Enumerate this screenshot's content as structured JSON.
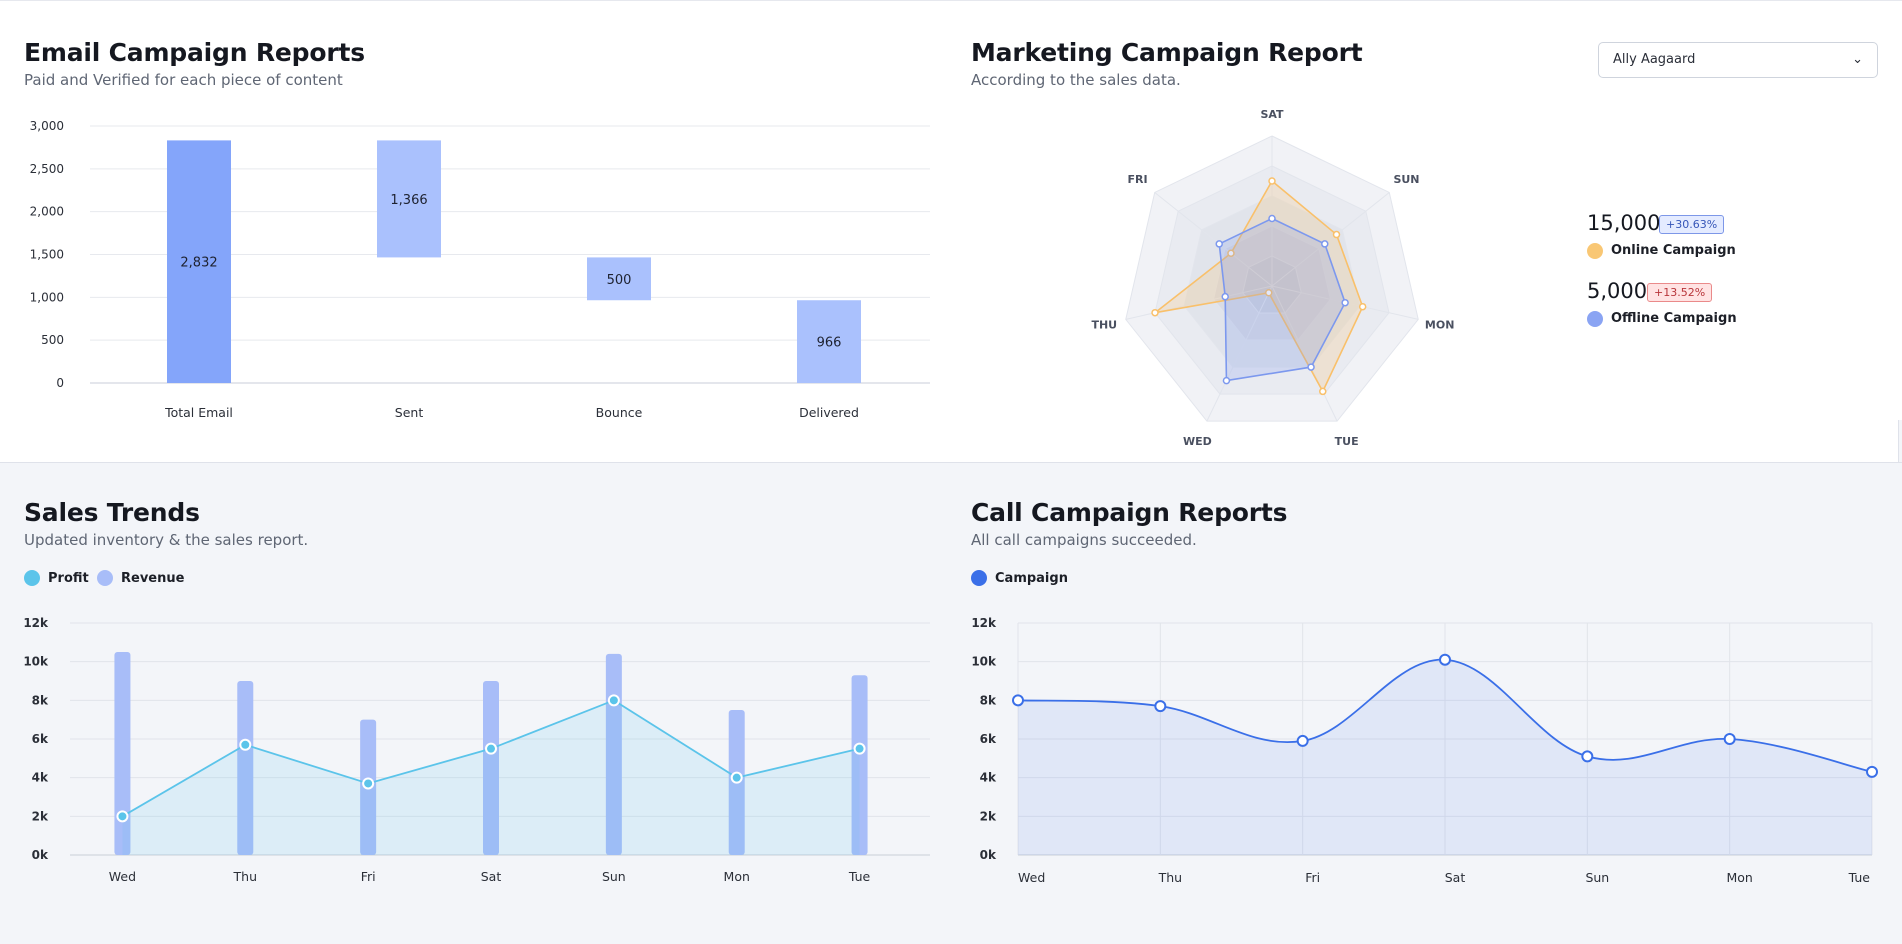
{
  "email_report": {
    "title": "Email Campaign Reports",
    "subtitle": "Paid and Verified for each piece of content"
  },
  "marketing_report": {
    "title": "Marketing Campaign Report",
    "subtitle": "According to the sales data.",
    "dropdown_value": "Ally Aagaard",
    "stats": [
      {
        "value": "15,000",
        "badge": "+30.63%",
        "label": "Online Campaign",
        "color": "#f9c774",
        "badge_kind": "positive"
      },
      {
        "value": "5,000",
        "badge": "+13.52%",
        "label": "Offline Campaign",
        "color": "#8aa4f3",
        "badge_kind": "negative"
      }
    ]
  },
  "sales_trends": {
    "title": "Sales Trends",
    "subtitle": "Updated inventory & the sales report.",
    "legend": [
      {
        "label": "Profit",
        "color": "#5bc4ea"
      },
      {
        "label": "Revenue",
        "color": "#a8bdf8"
      }
    ]
  },
  "call_report": {
    "title": "Call Campaign Reports",
    "subtitle": "All call campaigns succeeded.",
    "legend": [
      {
        "label": "Campaign",
        "color": "#3a6fe8"
      }
    ]
  },
  "chart_data": [
    {
      "type": "bar",
      "subtype": "waterfall",
      "categories": [
        "Total Email",
        "Sent",
        "Bounce",
        "Delivered"
      ],
      "values": [
        2832,
        1366,
        500,
        966
      ],
      "bases": [
        0,
        1466,
        966,
        0
      ],
      "ylim": [
        0,
        3000
      ],
      "yticks": [
        "0",
        "500",
        "1,000",
        "1,500",
        "2,000",
        "2,500",
        "3,000"
      ],
      "labels": [
        "2,832",
        "1,366",
        "500",
        "966"
      ],
      "colors": [
        "#84a5fa",
        "#aac1fd"
      ]
    },
    {
      "type": "radar",
      "axes": [
        "SAT",
        "SUN",
        "MON",
        "TUE",
        "WED",
        "THU",
        "FRI"
      ],
      "max": 100,
      "series": [
        {
          "name": "Online Campaign",
          "values": [
            70,
            55,
            62,
            78,
            5,
            80,
            35
          ],
          "color": "#f9c06a"
        },
        {
          "name": "Offline Campaign",
          "values": [
            45,
            45,
            50,
            60,
            70,
            32,
            45
          ],
          "color": "#7c98ee"
        }
      ]
    },
    {
      "type": "bar+line",
      "categories": [
        "Wed",
        "Thu",
        "Fri",
        "Sat",
        "Sun",
        "Mon",
        "Tue"
      ],
      "ylim": [
        0,
        12000
      ],
      "yticks": [
        "0k",
        "2k",
        "4k",
        "6k",
        "8k",
        "10k",
        "12k"
      ],
      "series": [
        {
          "name": "Revenue",
          "kind": "bar",
          "values": [
            10500,
            9000,
            7000,
            9000,
            10400,
            7500,
            9300
          ],
          "color": "#a8bdf8"
        },
        {
          "name": "Profit",
          "kind": "area-line",
          "values": [
            2000,
            5700,
            3700,
            5500,
            8000,
            4000,
            5500
          ],
          "color": "#5bc4ea"
        }
      ]
    },
    {
      "type": "area",
      "categories": [
        "Wed",
        "Thu",
        "Fri",
        "Sat",
        "Sun",
        "Mon",
        "Tue"
      ],
      "ylim": [
        0,
        12000
      ],
      "yticks": [
        "0k",
        "2k",
        "4k",
        "6k",
        "8k",
        "10k",
        "12k"
      ],
      "series": [
        {
          "name": "Campaign",
          "values": [
            8000,
            7700,
            5900,
            10100,
            5100,
            6000,
            4300
          ],
          "color": "#3a6fe8"
        }
      ]
    }
  ]
}
